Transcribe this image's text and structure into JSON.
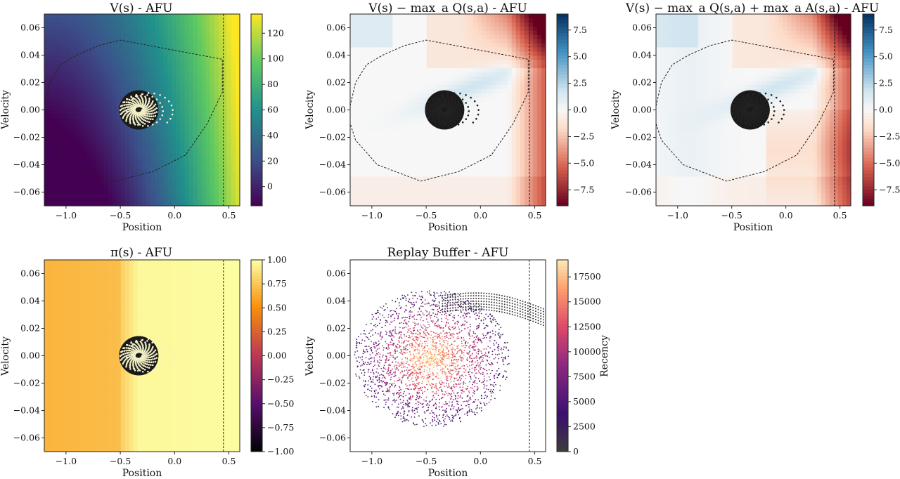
{
  "chart_data": [
    {
      "id": "value",
      "type": "heatmap",
      "title": "V(s) - AFU",
      "xlabel": "Position",
      "ylabel": "Velocity",
      "xlim": [
        -1.2,
        0.6
      ],
      "ylim": [
        -0.07,
        0.07
      ],
      "xticks": [
        "-1.0",
        "-0.5",
        "0.0",
        "0.5"
      ],
      "yticks": [
        "-0.06",
        "-0.04",
        "-0.02",
        "0.00",
        "0.02",
        "0.04",
        "0.06"
      ],
      "colormap": "viridis",
      "colorbar": {
        "range": [
          -15,
          135
        ],
        "ticks": [
          "0",
          "20",
          "40",
          "60",
          "80",
          "100",
          "120"
        ]
      },
      "goal_line_x": 0.45,
      "boundary": "yes",
      "trajectory_color": "#f3f0c8"
    },
    {
      "id": "q-gap",
      "type": "heatmap",
      "title": "V(s) − max_a Q(s,a) - AFU",
      "xlabel": "Position",
      "ylabel": "Velocity",
      "xlim": [
        -1.2,
        0.6
      ],
      "ylim": [
        -0.07,
        0.07
      ],
      "xticks": [
        "-1.0",
        "-0.5",
        "0.0",
        "0.5"
      ],
      "yticks": [
        "-0.06",
        "-0.04",
        "-0.02",
        "0.00",
        "0.02",
        "0.04",
        "0.06"
      ],
      "colormap": "RdBu",
      "colorbar": {
        "range": [
          -9,
          9
        ],
        "ticks": [
          "7.5",
          "5.0",
          "2.5",
          "0.0",
          "-2.5",
          "-5.0",
          "-7.5"
        ]
      },
      "goal_line_x": 0.45,
      "boundary": "yes",
      "trajectory_color": "#222222"
    },
    {
      "id": "q-gap-adv",
      "type": "heatmap",
      "title": "V(s) − max_a Q(s,a) + max_a A(s,a) - AFU",
      "xlabel": "Position",
      "ylabel": "Velocity",
      "xlim": [
        -1.2,
        0.6
      ],
      "ylim": [
        -0.07,
        0.07
      ],
      "xticks": [
        "-1.0",
        "-0.5",
        "0.0",
        "0.5"
      ],
      "yticks": [
        "-0.06",
        "-0.04",
        "-0.02",
        "0.00",
        "0.02",
        "0.04",
        "0.06"
      ],
      "colormap": "RdBu",
      "colorbar": {
        "range": [
          -9,
          9
        ],
        "ticks": [
          "7.5",
          "5.0",
          "2.5",
          "0.0",
          "-2.5",
          "-5.0",
          "-7.5"
        ]
      },
      "goal_line_x": 0.45,
      "boundary": "yes",
      "trajectory_color": "#222222"
    },
    {
      "id": "policy",
      "type": "heatmap",
      "title": "π(s) - AFU",
      "xlabel": "Position",
      "ylabel": "Velocity",
      "xlim": [
        -1.2,
        0.6
      ],
      "ylim": [
        -0.07,
        0.07
      ],
      "xticks": [
        "-1.0",
        "-0.5",
        "0.0",
        "0.5"
      ],
      "yticks": [
        "-0.06",
        "-0.04",
        "-0.02",
        "0.00",
        "0.02",
        "0.04",
        "0.06"
      ],
      "colormap": "inferno",
      "colorbar": {
        "range": [
          -1,
          1
        ],
        "ticks": [
          "1.00",
          "0.75",
          "0.50",
          "0.25",
          "0.00",
          "-0.25",
          "-0.50",
          "-0.75",
          "-1.00"
        ]
      },
      "goal_line_x": 0.45,
      "boundary": "no",
      "trajectory_color": "#f3f0c8"
    },
    {
      "id": "replay",
      "type": "scatter",
      "title": "Replay Buffer - AFU",
      "xlabel": "Position",
      "ylabel": "Velocity",
      "xlim": [
        -1.2,
        0.6
      ],
      "ylim": [
        -0.07,
        0.07
      ],
      "xticks": [
        "-1.0",
        "-0.5",
        "0.0",
        "0.5"
      ],
      "yticks": [
        "-0.06",
        "-0.04",
        "-0.02",
        "0.00",
        "0.02",
        "0.04",
        "0.06"
      ],
      "colormap": "magma",
      "colorbar": {
        "label": "Recency",
        "range": [
          0,
          19200
        ],
        "ticks": [
          "17500",
          "15000",
          "12500",
          "10000",
          "7500",
          "5000",
          "2500",
          "0"
        ]
      },
      "goal_line_x": 0.45,
      "boundary": "no"
    }
  ]
}
